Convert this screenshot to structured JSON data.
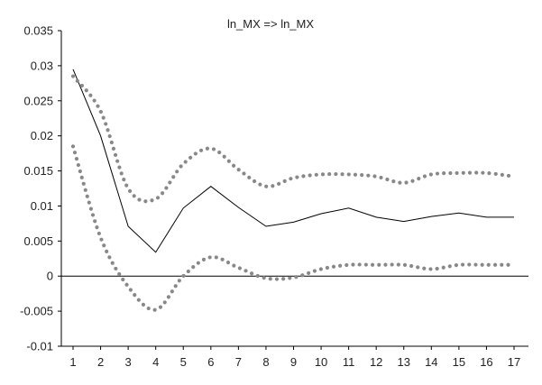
{
  "chart_data": {
    "type": "line",
    "title": "ln_MX => ln_MX",
    "xlabel": "",
    "ylabel": "",
    "x": [
      1,
      2,
      3,
      4,
      5,
      6,
      7,
      8,
      9,
      10,
      11,
      12,
      13,
      14,
      15,
      16,
      17
    ],
    "ylim": [
      -0.01,
      0.035
    ],
    "yticks": [
      -0.01,
      -0.005,
      0,
      0.005,
      0.01,
      0.015,
      0.02,
      0.025,
      0.03,
      0.035
    ],
    "ytick_labels": [
      "-0.01",
      "-0.005",
      "0",
      "0.005",
      "0.01",
      "0.015",
      "0.02",
      "0.025",
      "0.03",
      "0.035"
    ],
    "xtick_labels": [
      "1",
      "2",
      "3",
      "4",
      "5",
      "6",
      "7",
      "8",
      "9",
      "10",
      "11",
      "12",
      "13",
      "14",
      "15",
      "16",
      "17"
    ],
    "zero_line": true,
    "grid": false,
    "series": [
      {
        "role": "response",
        "style": "solid",
        "color": "#000000",
        "values": [
          0.0295,
          0.02,
          0.0071,
          0.0034,
          0.0097,
          0.0128,
          0.0098,
          0.0071,
          0.0077,
          0.0089,
          0.0097,
          0.0084,
          0.0078,
          0.0085,
          0.009,
          0.0084,
          0.0084
        ]
      },
      {
        "role": "upper-band",
        "style": "dotted",
        "color": "#888888",
        "values": [
          0.0285,
          0.0235,
          0.0125,
          0.011,
          0.016,
          0.0182,
          0.0152,
          0.0128,
          0.014,
          0.0145,
          0.0145,
          0.0142,
          0.0133,
          0.0145,
          0.0147,
          0.0147,
          0.0142
        ]
      },
      {
        "role": "lower-band",
        "style": "dotted",
        "color": "#888888",
        "values": [
          0.0185,
          0.0055,
          -0.0015,
          -0.0048,
          0.0,
          0.0027,
          0.0012,
          -0.0003,
          -0.0002,
          0.001,
          0.0016,
          0.0016,
          0.0016,
          0.001,
          0.0016,
          0.0016,
          0.0016
        ]
      }
    ]
  }
}
